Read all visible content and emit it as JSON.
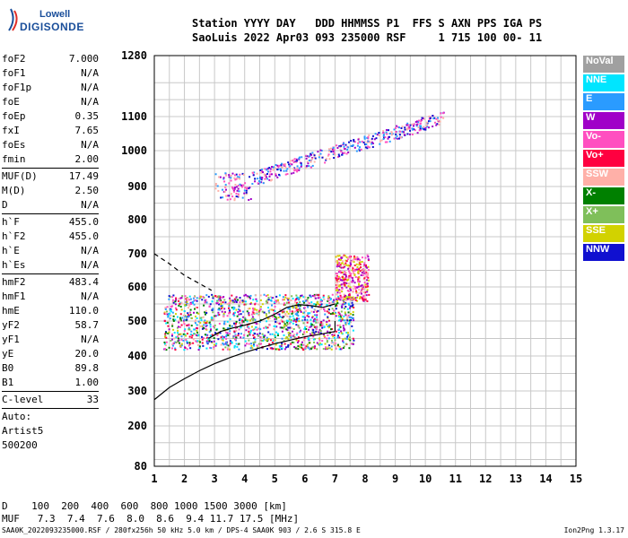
{
  "logo": {
    "line1": "Lowell",
    "line2": "DIGISONDE"
  },
  "header": {
    "line1": "Station YYYY DAY   DDD HHMMSS P1  FFS S AXN PPS IGA PS",
    "line2": "SaoLuis 2022 Apr03 093 235000 RSF     1 715 100 00- 11"
  },
  "params": [
    {
      "name": "foF2",
      "value": "7.000"
    },
    {
      "name": "foF1",
      "value": "N/A"
    },
    {
      "name": "foF1p",
      "value": "N/A"
    },
    {
      "name": "foE",
      "value": "N/A"
    },
    {
      "name": "foEp",
      "value": "0.35"
    },
    {
      "name": "fxI",
      "value": "7.65"
    },
    {
      "name": "foEs",
      "value": "N/A"
    },
    {
      "name": "fmin",
      "value": "2.00"
    },
    {
      "sep": true
    },
    {
      "name": "MUF(D)",
      "value": "17.49"
    },
    {
      "name": "M(D)",
      "value": "2.50"
    },
    {
      "name": "D",
      "value": "N/A"
    },
    {
      "sep": true
    },
    {
      "name": "h`F",
      "value": "455.0"
    },
    {
      "name": "h`F2",
      "value": "455.0"
    },
    {
      "name": "h`E",
      "value": "N/A"
    },
    {
      "name": "h`Es",
      "value": "N/A"
    },
    {
      "sep": true
    },
    {
      "name": "hmF2",
      "value": "483.4"
    },
    {
      "name": "hmF1",
      "value": "N/A"
    },
    {
      "name": "hmE",
      "value": "110.0"
    },
    {
      "name": "yF2",
      "value": "58.7"
    },
    {
      "name": "yF1",
      "value": "N/A"
    },
    {
      "name": "yE",
      "value": "20.0"
    },
    {
      "name": "B0",
      "value": "89.8"
    },
    {
      "name": "B1",
      "value": "1.00"
    },
    {
      "sep": true
    },
    {
      "name": "C-level",
      "value": "33"
    },
    {
      "sep": true
    }
  ],
  "auto_lines": [
    "Auto:",
    "Artist5",
    "500200"
  ],
  "legend": [
    {
      "label": "NoVal",
      "color": "#a0a0a0"
    },
    {
      "label": "NNE",
      "color": "#00e5ff"
    },
    {
      "label": "E",
      "color": "#2a9bff"
    },
    {
      "label": "W",
      "color": "#a000c8"
    },
    {
      "label": "Vo-",
      "color": "#ff4fc0"
    },
    {
      "label": "Vo+",
      "color": "#ff0040"
    },
    {
      "label": "SSW",
      "color": "#ffb0a8"
    },
    {
      "label": "X-",
      "color": "#008000"
    },
    {
      "label": "X+",
      "color": "#7fbf5a"
    },
    {
      "label": "SSE",
      "color": "#d2d200"
    },
    {
      "label": "NNW",
      "color": "#1010d0"
    }
  ],
  "chart_data": {
    "type": "scatter",
    "x_ticks": [
      "1",
      "2",
      "3",
      "4",
      "5",
      "6",
      "7",
      "8",
      "9",
      "10",
      "11",
      "12",
      "13",
      "14",
      "15"
    ],
    "y_ticks": [
      "80",
      "200",
      "300",
      "400",
      "500",
      "600",
      "700",
      "800",
      "900",
      "1000",
      "1100",
      "1280"
    ],
    "xlim": [
      1,
      15
    ],
    "profile": {
      "x": [
        1.0,
        1.5,
        2.0,
        2.5,
        3.0,
        3.5,
        4.0,
        4.5,
        5.0,
        5.5,
        6.0,
        6.5,
        7.0
      ],
      "y": [
        275,
        310,
        335,
        358,
        378,
        395,
        410,
        423,
        435,
        445,
        455,
        462,
        470
      ]
    },
    "trace": {
      "x": [
        2.8,
        3.2,
        3.6,
        4.0,
        4.5,
        5.0,
        5.4,
        5.8,
        6.2,
        6.6,
        7.0
      ],
      "y": [
        450,
        470,
        480,
        488,
        500,
        520,
        540,
        548,
        545,
        540,
        550
      ]
    },
    "dashed": {
      "x": [
        1.0,
        1.5,
        2.0,
        2.5,
        2.9
      ],
      "y": [
        700,
        670,
        635,
        610,
        590
      ]
    },
    "grid": true
  },
  "bottom": {
    "line1": "D    100  200  400  600  800 1000 1500 3000 [km]",
    "line2": "MUF   7.3  7.4  7.6  8.0  8.6  9.4 11.7 17.5 [MHz]"
  },
  "footer": "SAA0K_2022093235000.RSF / 280fx256h 50 kHz 5.0 km / DPS-4 SAA0K 903 / 2.6 S 315.8 E",
  "footer_right": "Ion2Png 1.3.17"
}
